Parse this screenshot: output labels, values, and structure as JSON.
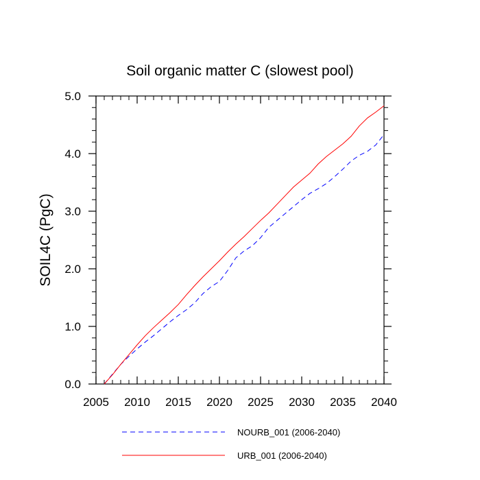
{
  "chart_data": {
    "type": "line",
    "title": "Soil organic matter C (slowest pool)",
    "xlabel": "",
    "ylabel": "SOIL4C  (PgC)",
    "xlim": [
      2005,
      2040
    ],
    "ylim": [
      0.0,
      5.0
    ],
    "xticks": [
      2005,
      2010,
      2015,
      2020,
      2025,
      2030,
      2035,
      2040
    ],
    "xtick_labels": [
      "2005",
      "2010",
      "2015",
      "2020",
      "2025",
      "2030",
      "2035",
      "2040"
    ],
    "yticks": [
      0.0,
      1.0,
      2.0,
      3.0,
      4.0,
      5.0
    ],
    "ytick_labels": [
      "0.0",
      "1.0",
      "2.0",
      "3.0",
      "4.0",
      "5.0"
    ],
    "grid": false,
    "legend_position": "bottom",
    "x": [
      2006,
      2007,
      2008,
      2009,
      2010,
      2011,
      2012,
      2013,
      2014,
      2015,
      2016,
      2017,
      2018,
      2019,
      2020,
      2021,
      2022,
      2023,
      2024,
      2025,
      2026,
      2027,
      2028,
      2029,
      2030,
      2031,
      2032,
      2033,
      2034,
      2035,
      2036,
      2037,
      2038,
      2039,
      2040
    ],
    "series": [
      {
        "name": "NOURB_001 (2006-2040)",
        "color": "#0000ff",
        "style": "dashed",
        "values": [
          0.0,
          0.17,
          0.34,
          0.48,
          0.61,
          0.73,
          0.84,
          0.96,
          1.08,
          1.19,
          1.29,
          1.41,
          1.57,
          1.69,
          1.78,
          1.97,
          2.19,
          2.31,
          2.4,
          2.54,
          2.72,
          2.84,
          2.96,
          3.08,
          3.2,
          3.31,
          3.39,
          3.48,
          3.6,
          3.73,
          3.87,
          3.97,
          4.04,
          4.15,
          4.33
        ]
      },
      {
        "name": "URB_001 (2006-2040)",
        "color": "#ff0000",
        "style": "solid",
        "values": [
          0.0,
          0.16,
          0.34,
          0.51,
          0.68,
          0.84,
          0.98,
          1.11,
          1.24,
          1.38,
          1.55,
          1.71,
          1.86,
          2.0,
          2.14,
          2.29,
          2.43,
          2.56,
          2.7,
          2.84,
          2.97,
          3.12,
          3.27,
          3.42,
          3.54,
          3.66,
          3.82,
          3.95,
          4.06,
          4.17,
          4.3,
          4.48,
          4.62,
          4.72,
          4.83
        ]
      }
    ]
  }
}
